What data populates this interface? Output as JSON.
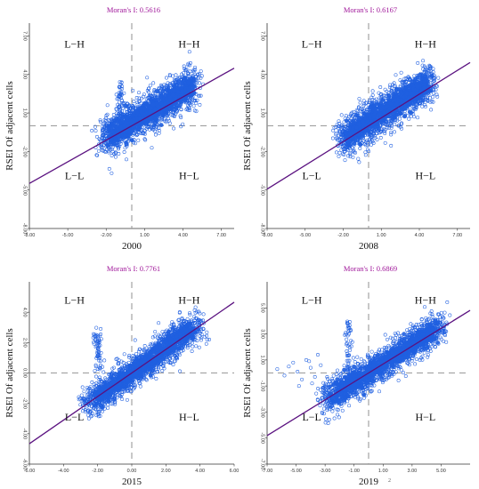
{
  "chart_data": [
    {
      "type": "scatter",
      "moran_label": "Moran's I: 0.5616",
      "xlabel": "2000",
      "ylabel": "RSEI Of adjacent cells",
      "xlim": [
        -8,
        8
      ],
      "ylim": [
        -8,
        8
      ],
      "x_ticks": [
        {
          "v": -8,
          "label": "-8.00"
        },
        {
          "v": -5,
          "label": "-5.00"
        },
        {
          "v": -2,
          "label": "-2.00"
        },
        {
          "v": 1,
          "label": "1.00"
        },
        {
          "v": 4,
          "label": "4.00"
        },
        {
          "v": 7,
          "label": "7.00"
        }
      ],
      "y_ticks": [
        {
          "v": -8,
          "label": "-8.00"
        },
        {
          "v": -5,
          "label": "-5.00"
        },
        {
          "v": -2,
          "label": "-2.00"
        },
        {
          "v": 1,
          "label": "1.00"
        },
        {
          "v": 4,
          "label": "4.00"
        },
        {
          "v": 7,
          "label": "7.00"
        }
      ],
      "quadrants": {
        "lh": "L−H",
        "hh": "H−H",
        "ll": "L−L",
        "hl": "H−L"
      },
      "regression": {
        "slope": 0.5616,
        "intercept": 0.0
      },
      "cloud": {
        "x_range": [
          -2.3,
          5.0
        ],
        "spread": 1.4,
        "center": [
          1.4,
          1.1
        ]
      },
      "spike": {
        "x": -0.9,
        "y_range": [
          -0.5,
          3.5
        ]
      },
      "outliers": []
    },
    {
      "type": "scatter",
      "moran_label": "Moran's I: 0.6167",
      "xlabel": "2008",
      "ylabel": "RSEI Of adjacent cells",
      "xlim": [
        -8,
        8
      ],
      "ylim": [
        -8,
        8
      ],
      "x_ticks": [
        {
          "v": -8,
          "label": "-8.00"
        },
        {
          "v": -5,
          "label": "-5.00"
        },
        {
          "v": -2,
          "label": "-2.00"
        },
        {
          "v": 1,
          "label": "1.00"
        },
        {
          "v": 4,
          "label": "4.00"
        },
        {
          "v": 7,
          "label": "7.00"
        }
      ],
      "y_ticks": [
        {
          "v": -8,
          "label": "-8.00"
        },
        {
          "v": -5,
          "label": "-5.00"
        },
        {
          "v": -2,
          "label": "-2.00"
        },
        {
          "v": 1,
          "label": "1.00"
        },
        {
          "v": 4,
          "label": "4.00"
        },
        {
          "v": 7,
          "label": "7.00"
        }
      ],
      "quadrants": {
        "lh": "L−H",
        "hh": "H−H",
        "ll": "L−L",
        "hl": "H−L"
      },
      "regression": {
        "slope": 0.6167,
        "intercept": 0.0
      },
      "cloud": {
        "x_range": [
          -2.2,
          5.0
        ],
        "spread": 1.4,
        "center": [
          1.4,
          1.2
        ]
      },
      "spike": null,
      "outliers": []
    },
    {
      "type": "scatter",
      "moran_label": "Moran's I: 0.7761",
      "xlabel": "2015",
      "ylabel": "RSEI Of adjacent cells",
      "xlim": [
        -6,
        6
      ],
      "ylim": [
        -6,
        6
      ],
      "x_ticks": [
        {
          "v": -6,
          "label": "-6.00"
        },
        {
          "v": -4,
          "label": "-4.00"
        },
        {
          "v": -2,
          "label": "-2.00"
        },
        {
          "v": 0,
          "label": "0.00"
        },
        {
          "v": 2,
          "label": "2.00"
        },
        {
          "v": 4,
          "label": "4.00"
        },
        {
          "v": 6,
          "label": "6.00"
        }
      ],
      "y_ticks": [
        {
          "v": -6,
          "label": "-6.00"
        },
        {
          "v": -4,
          "label": "-4.00"
        },
        {
          "v": -2,
          "label": "-2.00"
        },
        {
          "v": 0,
          "label": "0.00"
        },
        {
          "v": 2,
          "label": "2.00"
        },
        {
          "v": 4,
          "label": "4.00"
        }
      ],
      "quadrants": {
        "lh": "L−H",
        "hh": "H−H",
        "ll": "L−L",
        "hl": "H−L"
      },
      "regression": {
        "slope": 0.7761,
        "intercept": 0.0
      },
      "cloud": {
        "x_range": [
          -2.5,
          3.9
        ],
        "spread": 0.9,
        "center": [
          0.6,
          0.5
        ]
      },
      "spike": {
        "x": -2.0,
        "y_range": [
          0.0,
          3.0
        ]
      },
      "outliers": []
    },
    {
      "type": "scatter",
      "moran_label": "Moran's I: 0.6869",
      "xlabel": "2019",
      "ylabel": "RSEI Of adjacent cells",
      "caption_mark": "2",
      "xlim": [
        -7,
        7
      ],
      "ylim": [
        -7,
        7
      ],
      "x_ticks": [
        {
          "v": -7,
          "label": "-7.00"
        },
        {
          "v": -5,
          "label": "-5.00"
        },
        {
          "v": -3,
          "label": "-3.00"
        },
        {
          "v": -1,
          "label": "-1.00"
        },
        {
          "v": 1,
          "label": "1.00"
        },
        {
          "v": 3,
          "label": "3.00"
        },
        {
          "v": 5,
          "label": "5.00"
        }
      ],
      "y_ticks": [
        {
          "v": -7,
          "label": "-7.00"
        },
        {
          "v": -5,
          "label": "-5.00"
        },
        {
          "v": -3,
          "label": "-3.00"
        },
        {
          "v": -1,
          "label": "-1.00"
        },
        {
          "v": 1,
          "label": "1.00"
        },
        {
          "v": 3,
          "label": "3.00"
        },
        {
          "v": 5,
          "label": "5.00"
        }
      ],
      "quadrants": {
        "lh": "L−H",
        "hh": "H−H",
        "ll": "L−L",
        "hl": "H−L"
      },
      "regression": {
        "slope": 0.6869,
        "intercept": 0.0
      },
      "cloud": {
        "x_range": [
          -3.0,
          5.0
        ],
        "spread": 1.2,
        "center": [
          1.2,
          0.9
        ]
      },
      "spike": {
        "x": -1.4,
        "y_range": [
          -1.0,
          4.0
        ]
      },
      "outliers": [
        [
          -6.3,
          0.3
        ],
        [
          -5.8,
          -0.2
        ],
        [
          -5.2,
          0.8
        ],
        [
          -4.9,
          0.1
        ],
        [
          -4.6,
          -0.5
        ],
        [
          -4.3,
          1.0
        ],
        [
          -4.0,
          0.4
        ],
        [
          -3.7,
          -0.3
        ],
        [
          -3.5,
          1.4
        ],
        [
          -3.3,
          0.6
        ],
        [
          -5.5,
          0.5
        ],
        [
          -4.8,
          -1.0
        ],
        [
          -4.1,
          0.9
        ],
        [
          -3.9,
          -0.8
        ]
      ]
    }
  ],
  "colors": {
    "points": "#1f5fe0",
    "regression": "#5b1280",
    "dashed": "#9a9a9a",
    "moran": "#a0179a",
    "axis": "#333333"
  }
}
